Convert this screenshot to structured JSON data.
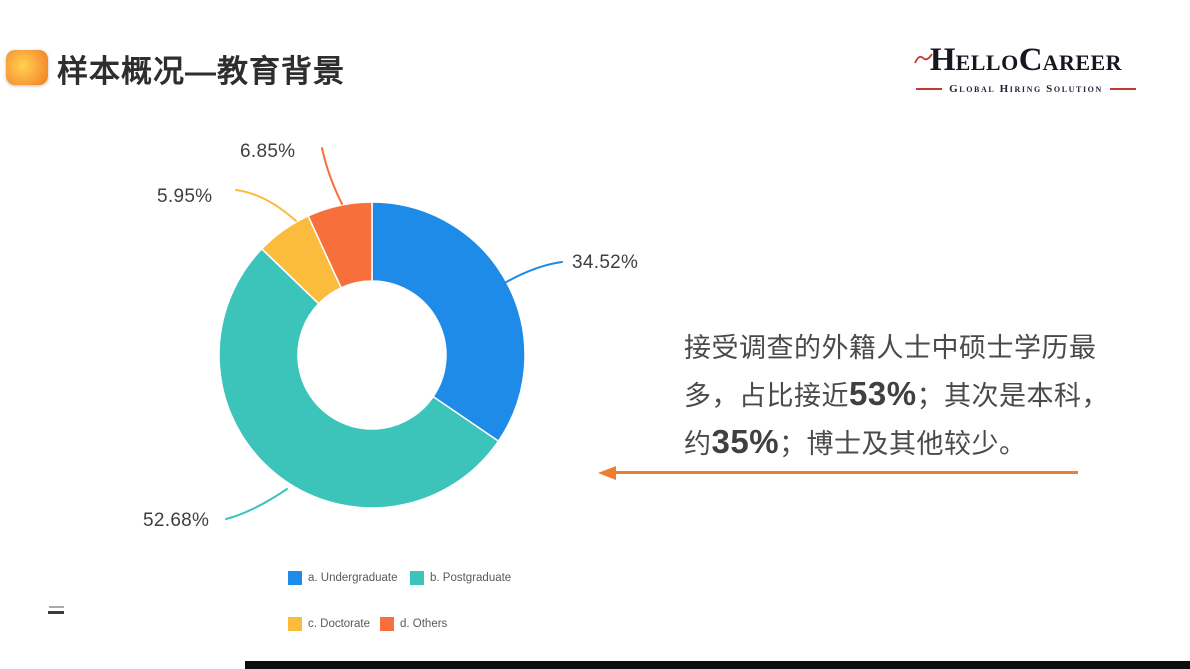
{
  "header": {
    "title": "样本概况—教育背景"
  },
  "logo": {
    "name_part1": "H",
    "name_part2": "ELLO",
    "name_part3": "C",
    "name_part4": "AREER",
    "tagline": "Global Hiring Solution",
    "accent_color": "#c23b33",
    "text_color": "#171722"
  },
  "chart_data": {
    "type": "pie",
    "subtype": "donut",
    "title": "",
    "categories": [
      "a. Undergraduate",
      "b. Postgraduate",
      "c. Doctorate",
      "d. Others"
    ],
    "values": [
      34.52,
      52.68,
      5.95,
      6.85
    ],
    "data_labels": [
      "34.52%",
      "52.68%",
      "5.95%",
      "6.85%"
    ],
    "colors": [
      "#1E8BE8",
      "#3CC4BA",
      "#FBBC3E",
      "#F7703C"
    ],
    "legend_position": "bottom",
    "start_angle": "top",
    "direction": "clockwise",
    "hole_ratio": 0.48
  },
  "insight": {
    "line1": "接受调查的外籍人士中硕士学历最",
    "line2_pre": "多，占比接近",
    "line2_bold": "53%",
    "line2_post": "；其次是本科，",
    "line3_pre": "约",
    "line3_bold": "35%",
    "line3_post": "；博士及其他较少。",
    "arrow_color": "#ED7D31"
  }
}
